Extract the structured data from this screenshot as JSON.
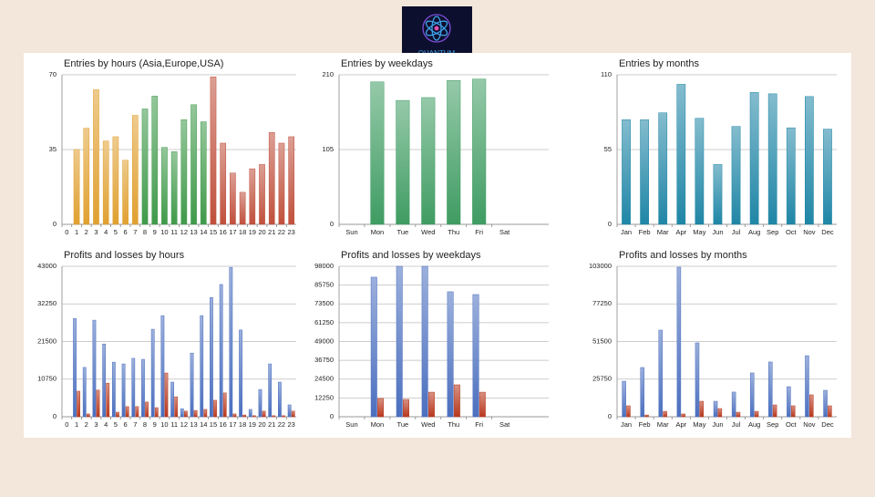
{
  "logo": {
    "text": "QUANTUM"
  },
  "chart_data": [
    {
      "type": "bar",
      "title": "Entries by hours (Asia,Europe,USA)",
      "categories": [
        "0",
        "1",
        "2",
        "3",
        "4",
        "5",
        "6",
        "7",
        "8",
        "9",
        "10",
        "11",
        "12",
        "13",
        "14",
        "15",
        "16",
        "17",
        "18",
        "19",
        "20",
        "21",
        "22",
        "23"
      ],
      "values": [
        0,
        35,
        45,
        63,
        39,
        41,
        30,
        51,
        54,
        60,
        36,
        34,
        49,
        56,
        48,
        69,
        38,
        24,
        15,
        26,
        28,
        43,
        38,
        41
      ],
      "colors": [
        "#e0a030",
        "#e0a030",
        "#e0a030",
        "#e0a030",
        "#e0a030",
        "#e0a030",
        "#e0a030",
        "#e0a030",
        "#3f9a4a",
        "#3f9a4a",
        "#3f9a4a",
        "#3f9a4a",
        "#3f9a4a",
        "#3f9a4a",
        "#3f9a4a",
        "#c0503c",
        "#c0503c",
        "#c0503c",
        "#c0503c",
        "#c0503c",
        "#c0503c",
        "#c0503c",
        "#c0503c",
        "#c0503c"
      ],
      "ylim": [
        0,
        70
      ],
      "yticks": [
        0,
        35,
        70
      ],
      "grid": true
    },
    {
      "type": "bar",
      "title": "Entries by weekdays",
      "categories": [
        "Sun",
        "Mon",
        "Tue",
        "Wed",
        "Thu",
        "Fri",
        "Sat"
      ],
      "values": [
        0,
        200,
        174,
        178,
        202,
        204,
        0
      ],
      "color": "#3f9c62",
      "ylim": [
        0,
        210
      ],
      "yticks": [
        0,
        105,
        210
      ],
      "grid": true
    },
    {
      "type": "bar",
      "title": "Entries by months",
      "categories": [
        "Jan",
        "Feb",
        "Mar",
        "Apr",
        "May",
        "Jun",
        "Jul",
        "Aug",
        "Sep",
        "Oct",
        "Nov",
        "Dec"
      ],
      "values": [
        77,
        77,
        82,
        103,
        78,
        44,
        72,
        97,
        96,
        71,
        94,
        70
      ],
      "color": "#1f86a6",
      "ylim": [
        0,
        110
      ],
      "yticks": [
        0,
        55,
        110
      ],
      "grid": true
    },
    {
      "type": "bar",
      "title": "Profits and losses by hours",
      "categories": [
        "0",
        "1",
        "2",
        "3",
        "4",
        "5",
        "6",
        "7",
        "8",
        "9",
        "10",
        "11",
        "12",
        "13",
        "14",
        "15",
        "16",
        "17",
        "18",
        "19",
        "20",
        "21",
        "22",
        "23"
      ],
      "series": [
        {
          "color": "#4b6fbf",
          "values": [
            0,
            28100,
            14100,
            27600,
            20800,
            15600,
            15100,
            16700,
            16400,
            25000,
            28900,
            9900,
            2300,
            18200,
            28900,
            34100,
            37800,
            42700,
            24800,
            2100,
            7800,
            15100,
            9900,
            3400
          ]
        },
        {
          "color": "#b8381e",
          "values": [
            0,
            7300,
            800,
            7600,
            9600,
            1300,
            2900,
            2900,
            4200,
            2600,
            12500,
            5700,
            1600,
            1800,
            2100,
            4700,
            6800,
            800,
            500,
            300,
            1600,
            300,
            300,
            1600
          ]
        }
      ],
      "ylim": [
        0,
        43000
      ],
      "yticks": [
        0,
        10750,
        21500,
        32250,
        43000
      ],
      "grid": true
    },
    {
      "type": "bar",
      "title": "Profits and losses by weekdays",
      "categories": [
        "Sun",
        "Mon",
        "Tue",
        "Wed",
        "Thu",
        "Fri",
        "Sat"
      ],
      "series": [
        {
          "color": "#4b6fbf",
          "values": [
            0,
            90900,
            98000,
            98000,
            81400,
            79600,
            0
          ]
        },
        {
          "color": "#b8381e",
          "values": [
            0,
            11900,
            11300,
            16000,
            20800,
            16000,
            0
          ]
        }
      ],
      "ylim": [
        0,
        98000
      ],
      "yticks": [
        0,
        12250,
        24500,
        36750,
        49000,
        61250,
        73500,
        85750,
        98000
      ],
      "grid": true
    },
    {
      "type": "bar",
      "title": "Profits and losses by months",
      "categories": [
        "Jan",
        "Feb",
        "Mar",
        "Apr",
        "May",
        "Jun",
        "Jul",
        "Aug",
        "Sep",
        "Oct",
        "Nov",
        "Dec"
      ],
      "series": [
        {
          "color": "#4b6fbf",
          "values": [
            24300,
            33700,
            59300,
            102400,
            50600,
            10600,
            16900,
            30000,
            37500,
            20600,
            41800,
            18100
          ]
        },
        {
          "color": "#b8381e",
          "values": [
            7500,
            1200,
            3700,
            1900,
            10600,
            5600,
            3100,
            3700,
            8100,
            7500,
            15000,
            7500
          ]
        }
      ],
      "ylim": [
        0,
        103000
      ],
      "yticks": [
        0,
        25750,
        51500,
        77250,
        103000
      ],
      "grid": true
    }
  ]
}
